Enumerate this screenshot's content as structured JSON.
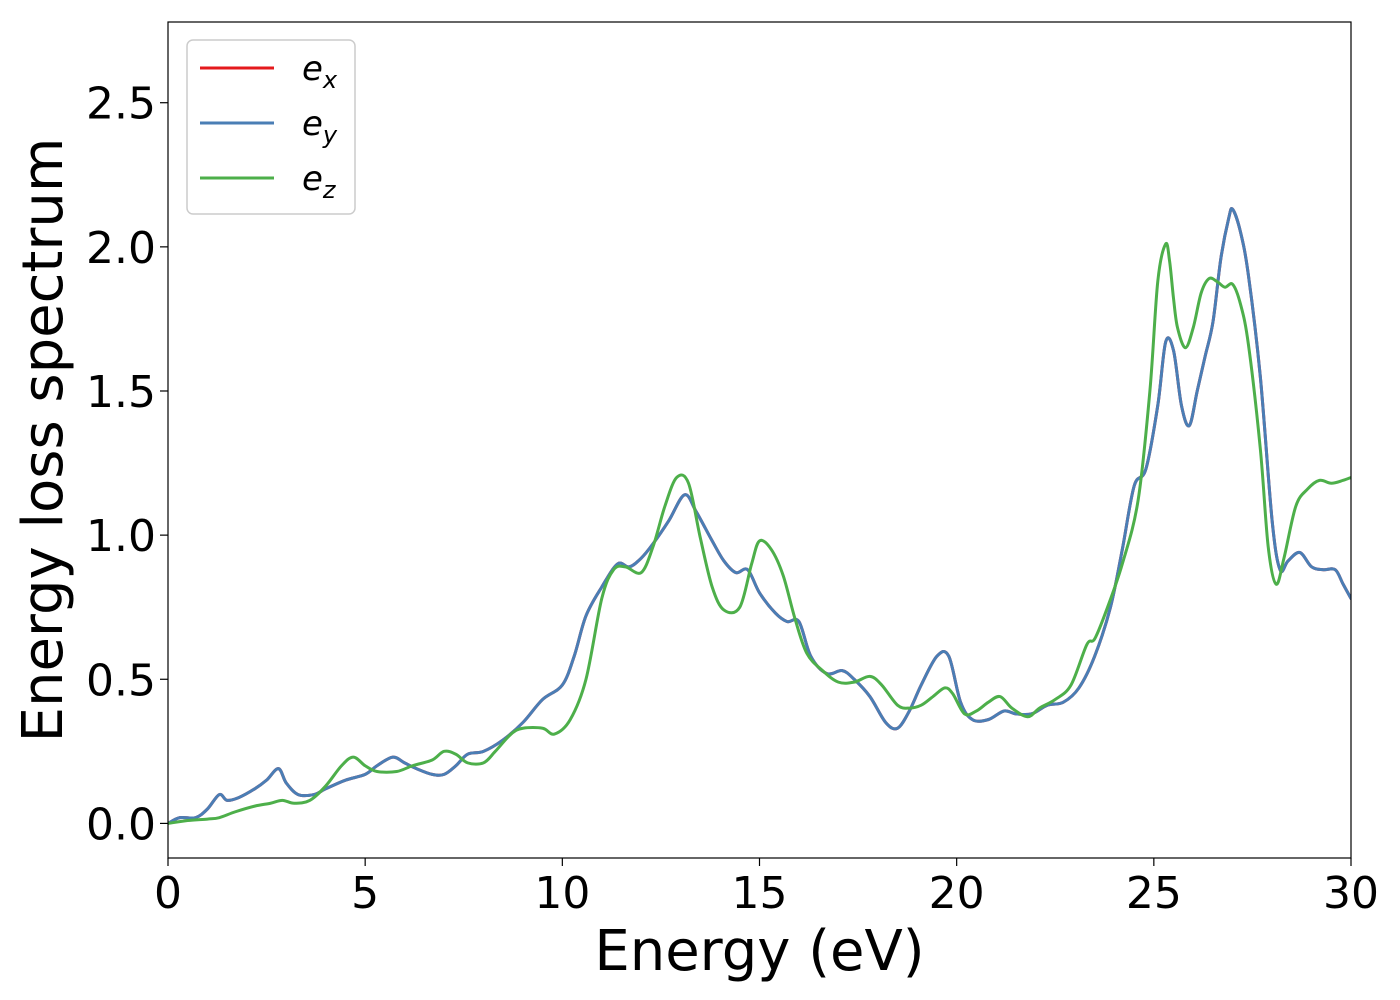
{
  "chart_data": {
    "type": "line",
    "title": "",
    "xlabel": "Energy (eV)",
    "ylabel": "Energy loss spectrum",
    "xlim": [
      0,
      30
    ],
    "ylim": [
      -0.12,
      2.78
    ],
    "x_ticks": [
      0,
      5,
      10,
      15,
      20,
      25,
      30
    ],
    "x_tick_labels": [
      "0",
      "5",
      "10",
      "15",
      "20",
      "25",
      "30"
    ],
    "y_ticks": [
      0.0,
      0.5,
      1.0,
      1.5,
      2.0,
      2.5
    ],
    "y_tick_labels": [
      "0.0",
      "0.5",
      "1.0",
      "1.5",
      "2.0",
      "2.5"
    ],
    "grid": false,
    "legend_position": "top-left",
    "series": [
      {
        "name": "e_x",
        "label_base": "e",
        "label_sub": "x",
        "color": "#e41a1c",
        "x": [
          0,
          0.3,
          0.7,
          1.0,
          1.3,
          1.5,
          1.8,
          2.2,
          2.5,
          2.8,
          3.0,
          3.3,
          3.7,
          4.0,
          4.5,
          5.0,
          5.3,
          5.7,
          6.0,
          6.3,
          6.7,
          7.0,
          7.3,
          7.6,
          8.0,
          8.5,
          9.0,
          9.5,
          10.0,
          10.3,
          10.6,
          11.0,
          11.4,
          11.7,
          12.0,
          12.3,
          12.7,
          13.1,
          13.4,
          13.8,
          14.1,
          14.4,
          14.7,
          15.0,
          15.4,
          15.7,
          16.0,
          16.3,
          16.7,
          17.1,
          17.4,
          17.8,
          18.2,
          18.5,
          18.8,
          19.1,
          19.5,
          19.8,
          20.1,
          20.4,
          20.8,
          21.2,
          21.5,
          21.9,
          22.3,
          22.7,
          23.1,
          23.5,
          23.9,
          24.2,
          24.5,
          24.8,
          25.1,
          25.3,
          25.5,
          25.7,
          25.9,
          26.1,
          26.3,
          26.5,
          26.7,
          26.9,
          27.0,
          27.2,
          27.4,
          27.7,
          28.0,
          28.2,
          28.4,
          28.7,
          29.0,
          29.3,
          29.6,
          29.8,
          30.0
        ],
        "y": [
          0.0,
          0.02,
          0.02,
          0.05,
          0.1,
          0.08,
          0.09,
          0.12,
          0.15,
          0.19,
          0.14,
          0.1,
          0.1,
          0.12,
          0.15,
          0.17,
          0.2,
          0.23,
          0.21,
          0.19,
          0.17,
          0.17,
          0.2,
          0.24,
          0.25,
          0.29,
          0.35,
          0.43,
          0.48,
          0.58,
          0.72,
          0.82,
          0.9,
          0.89,
          0.92,
          0.97,
          1.05,
          1.14,
          1.08,
          0.98,
          0.91,
          0.87,
          0.88,
          0.8,
          0.73,
          0.7,
          0.7,
          0.58,
          0.52,
          0.53,
          0.5,
          0.44,
          0.35,
          0.33,
          0.39,
          0.48,
          0.58,
          0.58,
          0.42,
          0.36,
          0.36,
          0.39,
          0.38,
          0.38,
          0.41,
          0.42,
          0.47,
          0.58,
          0.75,
          0.95,
          1.17,
          1.23,
          1.45,
          1.67,
          1.64,
          1.45,
          1.38,
          1.5,
          1.62,
          1.74,
          1.96,
          2.1,
          2.13,
          2.05,
          1.9,
          1.55,
          1.05,
          0.88,
          0.91,
          0.94,
          0.89,
          0.88,
          0.88,
          0.83,
          0.78
        ]
      },
      {
        "name": "e_y",
        "label_base": "e",
        "label_sub": "y",
        "color": "#4a7eb5",
        "x": [
          0,
          0.3,
          0.7,
          1.0,
          1.3,
          1.5,
          1.8,
          2.2,
          2.5,
          2.8,
          3.0,
          3.3,
          3.7,
          4.0,
          4.5,
          5.0,
          5.3,
          5.7,
          6.0,
          6.3,
          6.7,
          7.0,
          7.3,
          7.6,
          8.0,
          8.5,
          9.0,
          9.5,
          10.0,
          10.3,
          10.6,
          11.0,
          11.4,
          11.7,
          12.0,
          12.3,
          12.7,
          13.1,
          13.4,
          13.8,
          14.1,
          14.4,
          14.7,
          15.0,
          15.4,
          15.7,
          16.0,
          16.3,
          16.7,
          17.1,
          17.4,
          17.8,
          18.2,
          18.5,
          18.8,
          19.1,
          19.5,
          19.8,
          20.1,
          20.4,
          20.8,
          21.2,
          21.5,
          21.9,
          22.3,
          22.7,
          23.1,
          23.5,
          23.9,
          24.2,
          24.5,
          24.8,
          25.1,
          25.3,
          25.5,
          25.7,
          25.9,
          26.1,
          26.3,
          26.5,
          26.7,
          26.9,
          27.0,
          27.2,
          27.4,
          27.7,
          28.0,
          28.2,
          28.4,
          28.7,
          29.0,
          29.3,
          29.6,
          29.8,
          30.0
        ],
        "y": [
          0.0,
          0.02,
          0.02,
          0.05,
          0.1,
          0.08,
          0.09,
          0.12,
          0.15,
          0.19,
          0.14,
          0.1,
          0.1,
          0.12,
          0.15,
          0.17,
          0.2,
          0.23,
          0.21,
          0.19,
          0.17,
          0.17,
          0.2,
          0.24,
          0.25,
          0.29,
          0.35,
          0.43,
          0.48,
          0.58,
          0.72,
          0.82,
          0.9,
          0.89,
          0.92,
          0.97,
          1.05,
          1.14,
          1.08,
          0.98,
          0.91,
          0.87,
          0.88,
          0.8,
          0.73,
          0.7,
          0.7,
          0.58,
          0.52,
          0.53,
          0.5,
          0.44,
          0.35,
          0.33,
          0.39,
          0.48,
          0.58,
          0.58,
          0.42,
          0.36,
          0.36,
          0.39,
          0.38,
          0.38,
          0.41,
          0.42,
          0.47,
          0.58,
          0.75,
          0.95,
          1.17,
          1.23,
          1.45,
          1.67,
          1.64,
          1.45,
          1.38,
          1.5,
          1.62,
          1.74,
          1.96,
          2.1,
          2.13,
          2.05,
          1.9,
          1.55,
          1.05,
          0.88,
          0.91,
          0.94,
          0.89,
          0.88,
          0.88,
          0.83,
          0.78
        ]
      },
      {
        "name": "e_z",
        "label_base": "e",
        "label_sub": "z",
        "color": "#4daf4a",
        "x": [
          0,
          0.5,
          1.0,
          1.3,
          1.7,
          2.2,
          2.6,
          2.9,
          3.2,
          3.6,
          4.0,
          4.4,
          4.7,
          5.0,
          5.3,
          5.8,
          6.2,
          6.7,
          7.0,
          7.3,
          7.6,
          8.0,
          8.3,
          8.7,
          9.0,
          9.5,
          9.8,
          10.2,
          10.6,
          11.0,
          11.3,
          11.6,
          12.0,
          12.3,
          12.6,
          12.9,
          13.2,
          13.5,
          13.8,
          14.1,
          14.5,
          14.8,
          15.0,
          15.3,
          15.6,
          15.9,
          16.2,
          16.6,
          17.0,
          17.4,
          17.8,
          18.1,
          18.5,
          18.8,
          19.1,
          19.4,
          19.7,
          19.9,
          20.2,
          20.5,
          20.8,
          21.1,
          21.4,
          21.8,
          22.1,
          22.5,
          22.9,
          23.3,
          23.5,
          23.8,
          24.2,
          24.6,
          24.9,
          25.1,
          25.3,
          25.4,
          25.5,
          25.6,
          25.8,
          26.0,
          26.2,
          26.4,
          26.6,
          26.8,
          27.0,
          27.2,
          27.4,
          27.7,
          27.9,
          28.1,
          28.3,
          28.6,
          28.9,
          29.2,
          29.5,
          29.8,
          30.0
        ],
        "y": [
          0.0,
          0.01,
          0.015,
          0.02,
          0.04,
          0.06,
          0.07,
          0.08,
          0.07,
          0.08,
          0.13,
          0.2,
          0.23,
          0.2,
          0.18,
          0.18,
          0.2,
          0.22,
          0.25,
          0.24,
          0.21,
          0.21,
          0.25,
          0.31,
          0.33,
          0.33,
          0.31,
          0.36,
          0.5,
          0.78,
          0.88,
          0.89,
          0.87,
          0.96,
          1.1,
          1.2,
          1.18,
          0.99,
          0.82,
          0.74,
          0.75,
          0.9,
          0.98,
          0.95,
          0.86,
          0.71,
          0.59,
          0.53,
          0.49,
          0.49,
          0.51,
          0.48,
          0.41,
          0.4,
          0.41,
          0.44,
          0.47,
          0.45,
          0.38,
          0.39,
          0.42,
          0.44,
          0.4,
          0.37,
          0.4,
          0.43,
          0.48,
          0.62,
          0.64,
          0.74,
          0.9,
          1.12,
          1.5,
          1.88,
          2.01,
          1.95,
          1.82,
          1.72,
          1.65,
          1.72,
          1.84,
          1.89,
          1.88,
          1.86,
          1.87,
          1.8,
          1.66,
          1.3,
          0.96,
          0.83,
          0.92,
          1.1,
          1.16,
          1.19,
          1.18,
          1.19,
          1.2
        ]
      }
    ]
  }
}
